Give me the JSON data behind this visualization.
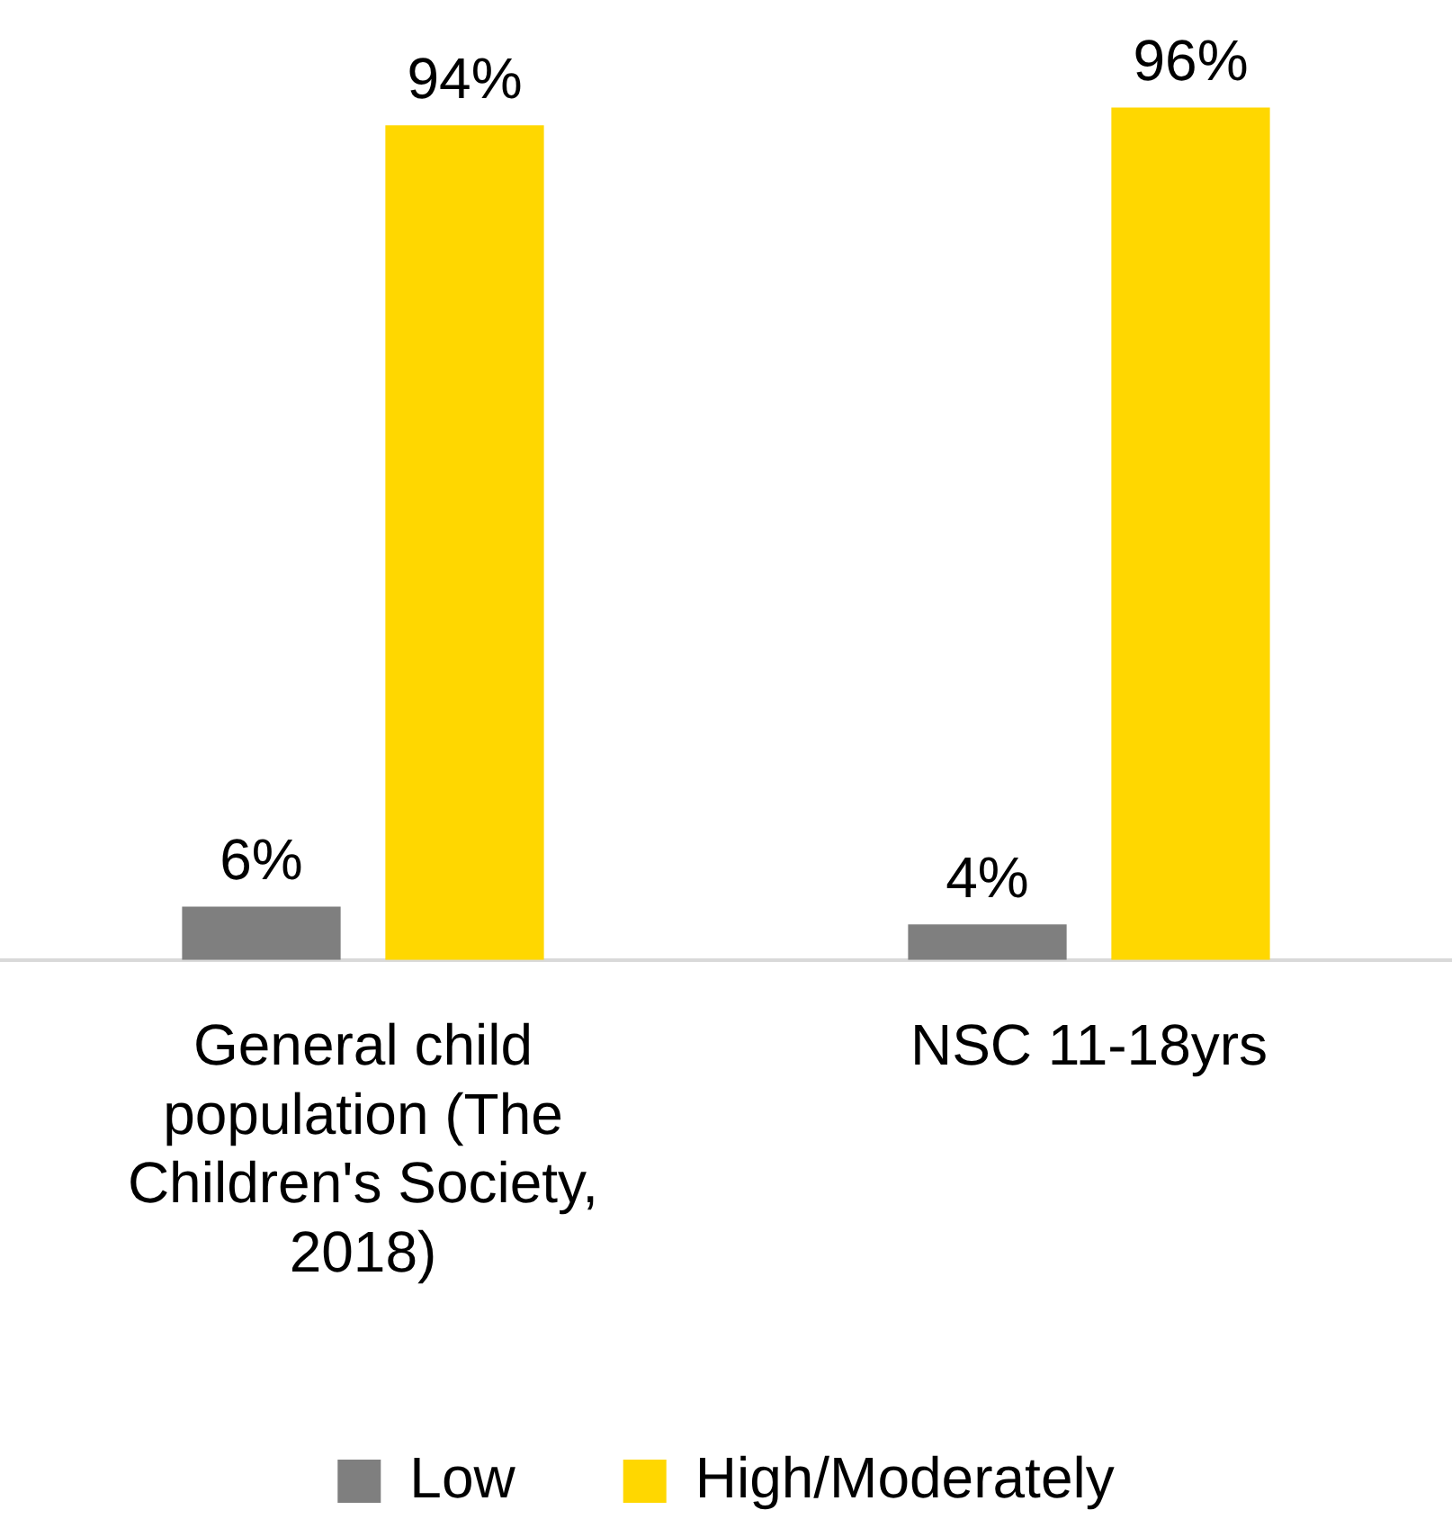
{
  "chart_data": {
    "type": "bar",
    "categories": [
      "General child population (The Children's Society, 2018)",
      "NSC 11-18yrs"
    ],
    "series": [
      {
        "name": "Low",
        "color": "#7f7f7f",
        "values": [
          6,
          4
        ],
        "value_labels": [
          "6%",
          "4%"
        ]
      },
      {
        "name": "High/Moderately",
        "color": "#ffd700",
        "values": [
          94,
          96
        ],
        "value_labels": [
          "94%",
          "96%"
        ]
      }
    ],
    "grid": false,
    "legend": "bottom",
    "tick_labels": "x"
  }
}
